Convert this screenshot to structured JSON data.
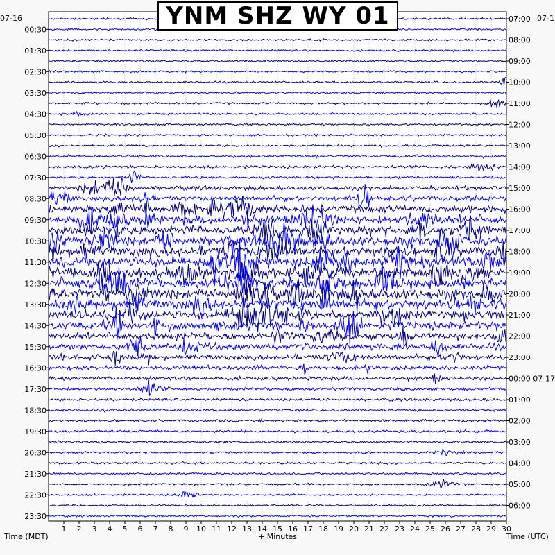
{
  "chart_data": {
    "type": "helicorder",
    "title": "YNM SHZ WY 01",
    "left_axis_label": "Time (MDT)",
    "right_axis_label": "Time (UTC)",
    "bottom_axis_label": "+ Minutes",
    "top_left_date": "07-16",
    "top_right_date": "07-1",
    "x_ticks": [
      1,
      2,
      3,
      4,
      5,
      6,
      7,
      8,
      9,
      10,
      11,
      12,
      13,
      14,
      15,
      16,
      17,
      18,
      19,
      20,
      21,
      22,
      23,
      24,
      25,
      26,
      27,
      28,
      29,
      30
    ],
    "xlim": [
      0,
      30
    ],
    "lines_per_label": 2,
    "left_hour_labels": [
      "00:30",
      "01:30",
      "02:30",
      "03:30",
      "04:30",
      "05:30",
      "06:30",
      "07:30",
      "08:30",
      "09:30",
      "10:30",
      "11:30",
      "12:30",
      "13:30",
      "14:30",
      "15:30",
      "16:30",
      "17:30",
      "18:30",
      "19:30",
      "20:30",
      "21:30",
      "22:30",
      "23:30"
    ],
    "right_hour_labels": [
      "07:00",
      "08:00",
      "09:00",
      "10:00",
      "11:00",
      "12:00",
      "13:00",
      "14:00",
      "15:00",
      "16:00",
      "17:00",
      "18:00",
      "19:00",
      "20:00",
      "21:00",
      "22:00",
      "23:00",
      "00:00 07-17",
      "01:00",
      "02:00",
      "03:00",
      "04:00",
      "05:00",
      "06:00"
    ],
    "trace_colors": [
      "#00007f",
      "#0000ff"
    ],
    "clip_color": "#ff0000",
    "line_activity": [
      0.1,
      0.12,
      0.12,
      0.13,
      0.12,
      0.12,
      0.12,
      0.12,
      0.13,
      0.14,
      0.14,
      0.2,
      0.25,
      0.5,
      0.7,
      0.45,
      1.4,
      2.0,
      3.2,
      4.0,
      4.4,
      4.6,
      5.0,
      5.2,
      5.3,
      5.3,
      5.2,
      5.0,
      4.2,
      3.8,
      3.0,
      2.6,
      2.2,
      1.6,
      1.2,
      0.8,
      0.6,
      0.5,
      0.45,
      0.4,
      0.35,
      0.3,
      0.25,
      0.2,
      0.15,
      0.12,
      0.1,
      0.1
    ]
  }
}
